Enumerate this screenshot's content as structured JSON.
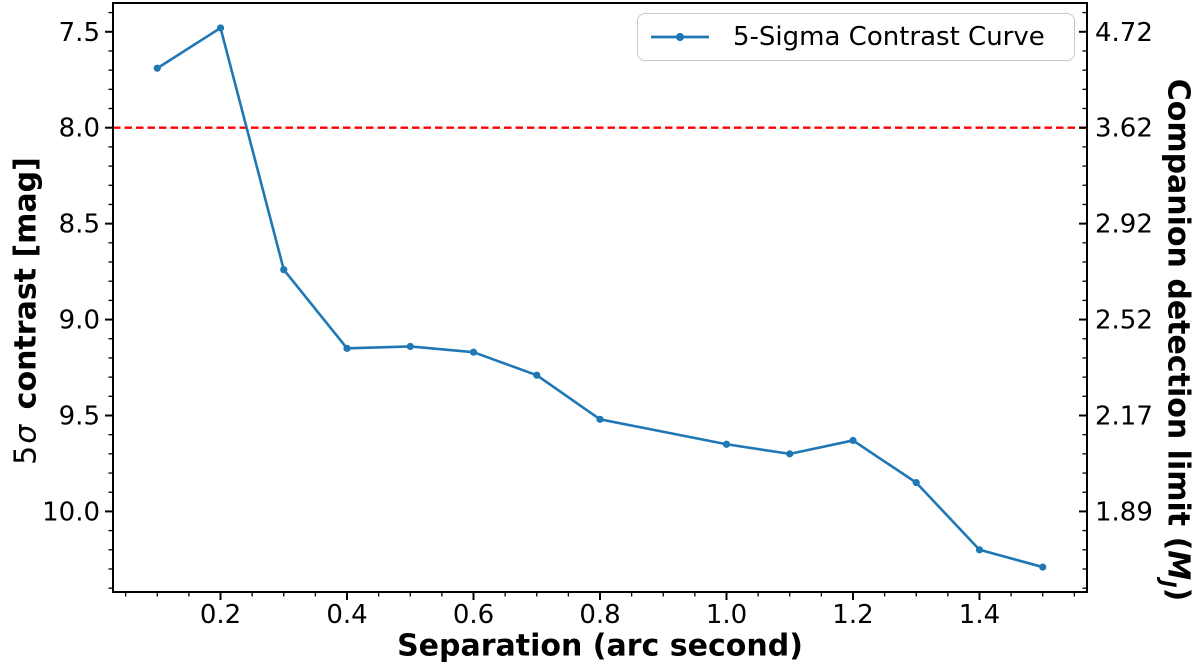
{
  "figure": {
    "background": "#ffffff",
    "line_color": "#1f77b4",
    "threshold_color": "#ff0000",
    "axis_color": "#000000"
  },
  "labels": {
    "x_title": "Separation (arc second)",
    "y_left_pre": "5",
    "y_left_sigma": "σ",
    "y_left_post": " contrast [mag]",
    "y_right_pre": "Companion detection limit (",
    "y_right_var": "M",
    "y_right_sub": "J",
    "y_right_close": ")"
  },
  "chart_data": {
    "type": "line",
    "title": "",
    "xlabel": "Separation (arc second)",
    "ylabel_left": "5σ contrast [mag]",
    "ylabel_right": "Companion detection limit (M_J)",
    "legend": {
      "label": "5-Sigma Contrast Curve",
      "position": "upper right"
    },
    "grid": false,
    "y_axis_inverted": true,
    "xlim": [
      0.03,
      1.57
    ],
    "ylim_top_to_bottom": [
      7.35,
      10.42
    ],
    "x_ticks": [
      0.2,
      0.4,
      0.6,
      0.8,
      1.0,
      1.2,
      1.4
    ],
    "x_tick_labels": [
      "0.2",
      "0.4",
      "0.6",
      "0.8",
      "1.0",
      "1.2",
      "1.4"
    ],
    "x_minor_tick_step": 0.05,
    "y_ticks_left": [
      7.5,
      8.0,
      8.5,
      9.0,
      9.5,
      10.0
    ],
    "y_tick_labels_left": [
      "7.5",
      "8.0",
      "8.5",
      "9.0",
      "9.5",
      "10.0"
    ],
    "y_minor_tick_step": 0.1,
    "y_ticks_right": [
      7.5,
      8.0,
      8.5,
      9.0,
      9.5,
      10.0
    ],
    "y_tick_labels_right": [
      "4.72",
      "3.62",
      "2.92",
      "2.52",
      "2.17",
      "1.89"
    ],
    "series": [
      {
        "name": "5-Sigma Contrast Curve",
        "color": "#1f77b4",
        "marker": "circle",
        "x": [
          0.1,
          0.2,
          0.3,
          0.4,
          0.5,
          0.6,
          0.7,
          0.8,
          1.0,
          1.1,
          1.2,
          1.3,
          1.4,
          1.5
        ],
        "y": [
          7.69,
          7.48,
          8.74,
          9.15,
          9.14,
          9.17,
          9.29,
          9.52,
          9.65,
          9.7,
          9.63,
          9.85,
          10.2,
          10.29
        ]
      }
    ],
    "hline": {
      "y": 8.0,
      "color": "#ff0000",
      "style": "dashed"
    }
  }
}
